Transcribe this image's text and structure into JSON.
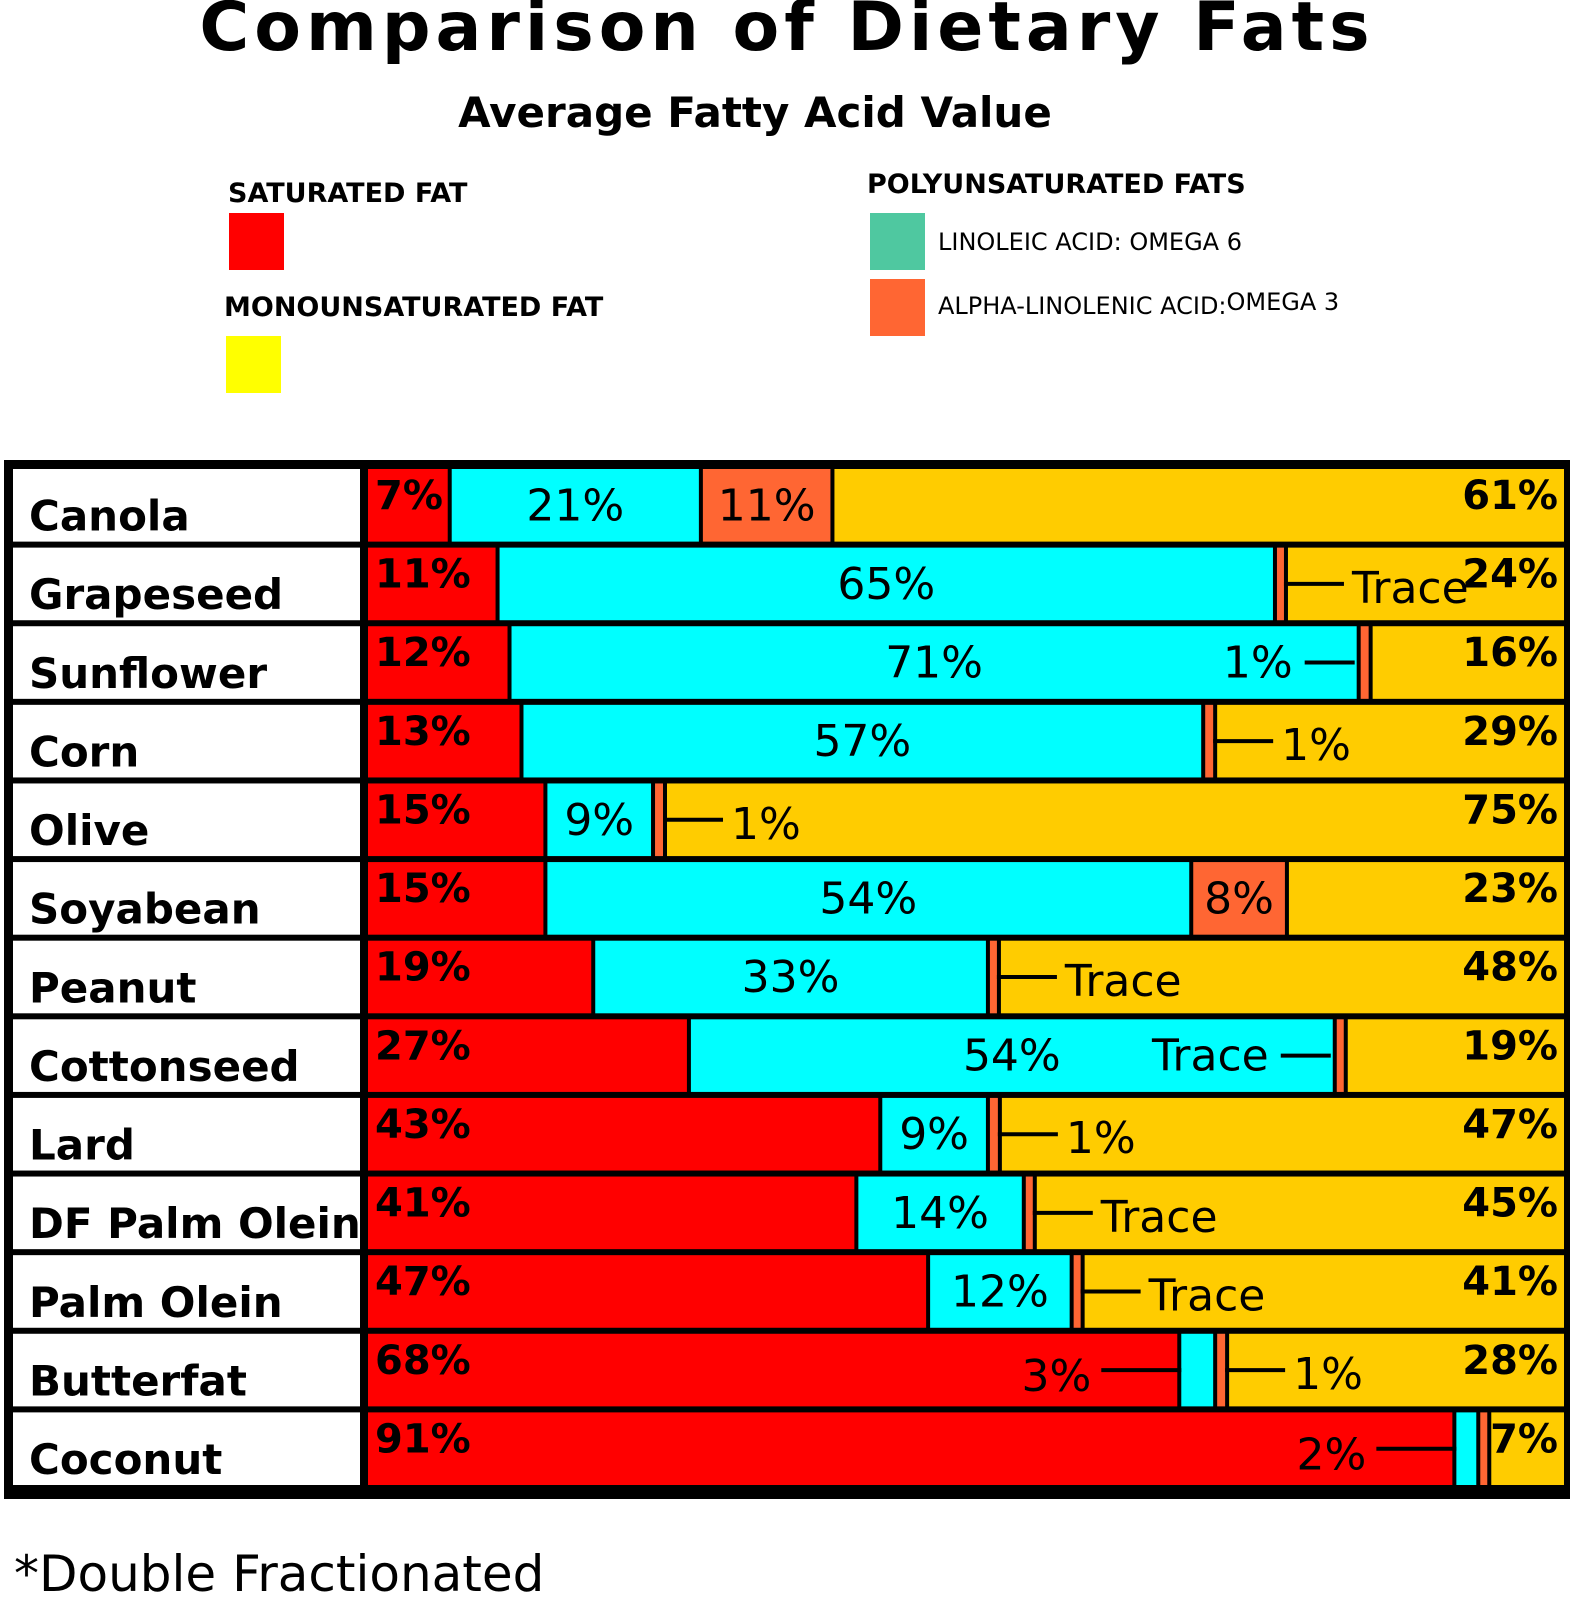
{
  "chart_data": {
    "type": "bar",
    "stacked": true,
    "orientation": "horizontal",
    "title": "Comparison of Dietary Fats",
    "subtitle": "Average Fatty Acid Value",
    "legend": {
      "saturated": "SATURATED FAT",
      "monounsaturated": "MONOUNSATURATED FAT",
      "polyunsaturated_heading": "POLYUNSATURATED FATS",
      "omega6": "LINOLEIC ACID: OMEGA 6",
      "omega3_a": "ALPHA-LINOLENIC ACID:",
      "omega3_b": "OMEGA 3"
    },
    "colors": {
      "saturated": "#ff0000",
      "omega6": "#00ffff",
      "omega3": "#ff6633",
      "monounsaturated": "#ffcc00",
      "legend_omega6": "#4fc8a0",
      "legend_mono": "#ffff00"
    },
    "categories": [
      "Canola",
      "Grapeseed",
      "Sunflower",
      "Corn",
      "Olive",
      "Soyabean",
      "Peanut",
      "Cottonseed",
      "Lard",
      "DF Palm Olein *",
      "Palm Olein",
      "Butterfat",
      "Coconut"
    ],
    "series": [
      {
        "name": "Saturated Fat",
        "values": [
          7,
          11,
          12,
          13,
          15,
          15,
          19,
          27,
          43,
          41,
          47,
          68,
          91
        ]
      },
      {
        "name": "Linoleic Acid: Omega 6",
        "values": [
          21,
          65,
          71,
          57,
          9,
          54,
          33,
          54,
          9,
          14,
          12,
          3,
          2
        ]
      },
      {
        "name": "Alpha-Linolenic Acid: Omega 3",
        "values": [
          11,
          0,
          1,
          1,
          1,
          8,
          0,
          0,
          1,
          0,
          0,
          1,
          0
        ]
      },
      {
        "name": "Monounsaturated Fat",
        "values": [
          61,
          24,
          16,
          29,
          75,
          23,
          48,
          19,
          47,
          45,
          41,
          28,
          7
        ]
      }
    ],
    "labels": {
      "saturated": [
        "7%",
        "11%",
        "12%",
        "13%",
        "15%",
        "15%",
        "19%",
        "27%",
        "43%",
        "41%",
        "47%",
        "68%",
        "91%"
      ],
      "omega6": [
        "21%",
        "65%",
        "71%",
        "57%",
        "9%",
        "54%",
        "33%",
        "54%",
        "9%",
        "14%",
        "12%",
        "3%",
        "2%"
      ],
      "omega3": [
        "11%",
        "Trace",
        "1%",
        "1%",
        "1%",
        "8%",
        "Trace",
        "Trace",
        "1%",
        "Trace",
        "Trace",
        "1%",
        ""
      ],
      "mono": [
        "61%",
        "24%",
        "16%",
        "29%",
        "75%",
        "23%",
        "48%",
        "19%",
        "47%",
        "45%",
        "41%",
        "28%",
        "7%"
      ]
    },
    "footnote": "*Double Fractionated"
  }
}
